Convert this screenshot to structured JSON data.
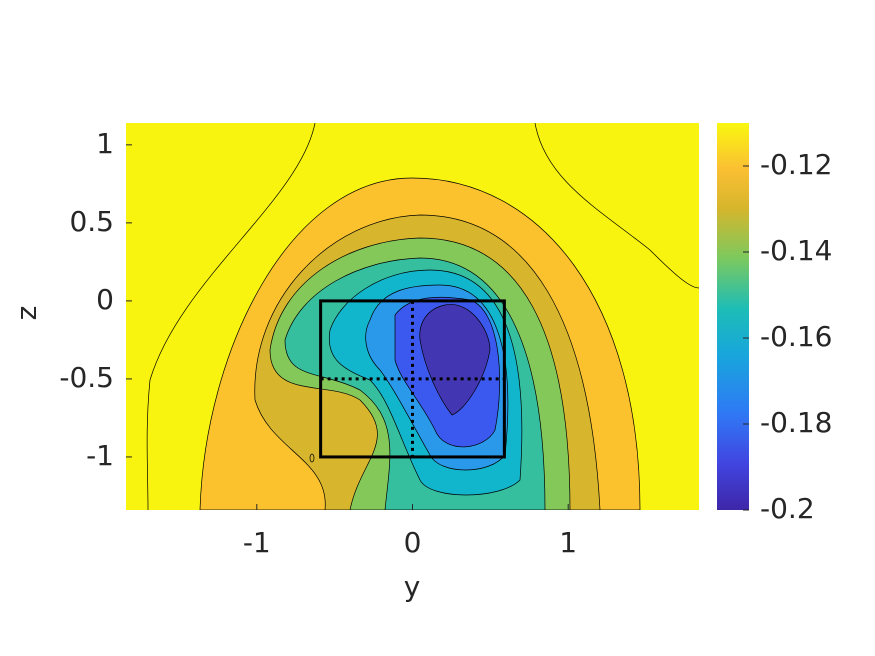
{
  "chart_data": {
    "type": "contour",
    "xlabel": "y",
    "ylabel": "z",
    "xlim": [
      -1.84,
      1.84
    ],
    "ylim": [
      -1.34,
      1.14
    ],
    "xticks": [
      -1,
      0,
      1
    ],
    "yticks": [
      1,
      0.5,
      0,
      -0.5,
      -1
    ],
    "colorbar": {
      "clim": [
        -0.2,
        -0.11
      ],
      "ticks": [
        -0.12,
        -0.14,
        -0.16,
        -0.18,
        -0.2
      ]
    },
    "box": {
      "x": [
        -0.59,
        0.59
      ],
      "y": [
        -1,
        0
      ]
    },
    "dotted_x": 0,
    "dotted_y": -0.5
  }
}
